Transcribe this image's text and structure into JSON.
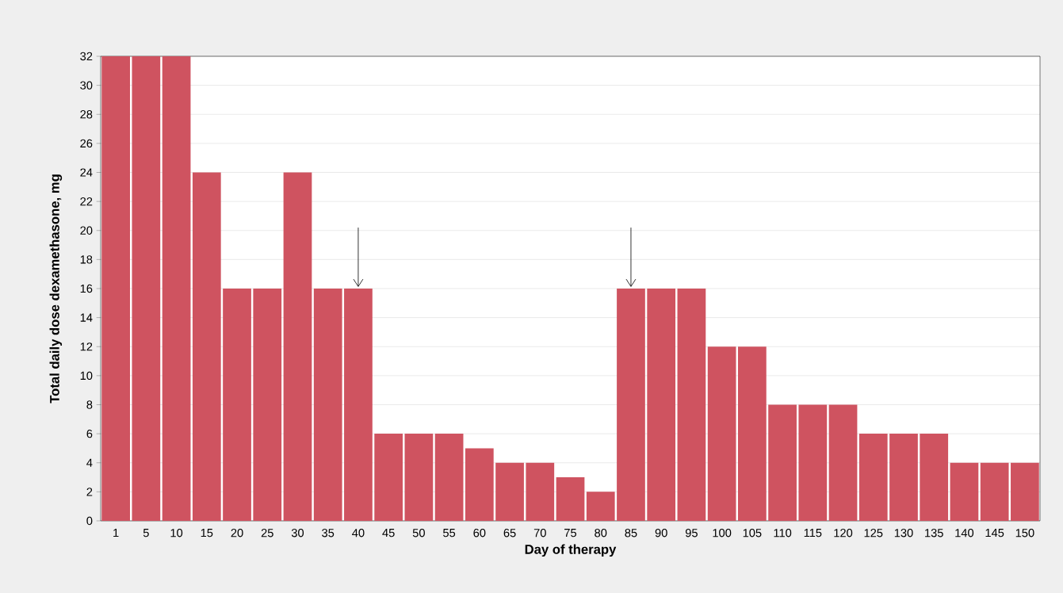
{
  "chart_data": {
    "type": "bar",
    "xlabel": "Day of therapy",
    "ylabel": "Total daily dose dexamethasone, mg",
    "categories": [
      "1",
      "5",
      "10",
      "15",
      "20",
      "25",
      "30",
      "35",
      "40",
      "45",
      "50",
      "55",
      "60",
      "65",
      "70",
      "75",
      "80",
      "85",
      "90",
      "95",
      "100",
      "105",
      "110",
      "115",
      "120",
      "125",
      "130",
      "135",
      "140",
      "145",
      "150"
    ],
    "values": [
      32,
      32,
      32,
      24,
      16,
      16,
      24,
      16,
      16,
      6,
      6,
      6,
      5,
      4,
      4,
      3,
      2,
      16,
      16,
      16,
      12,
      12,
      8,
      8,
      8,
      6,
      6,
      6,
      4,
      4,
      4
    ],
    "color": "#cf5360",
    "ylim": [
      0,
      32
    ],
    "yticks": [
      0,
      2,
      4,
      6,
      8,
      10,
      12,
      14,
      16,
      18,
      20,
      22,
      24,
      26,
      28,
      30,
      32
    ],
    "grid": "y"
  }
}
